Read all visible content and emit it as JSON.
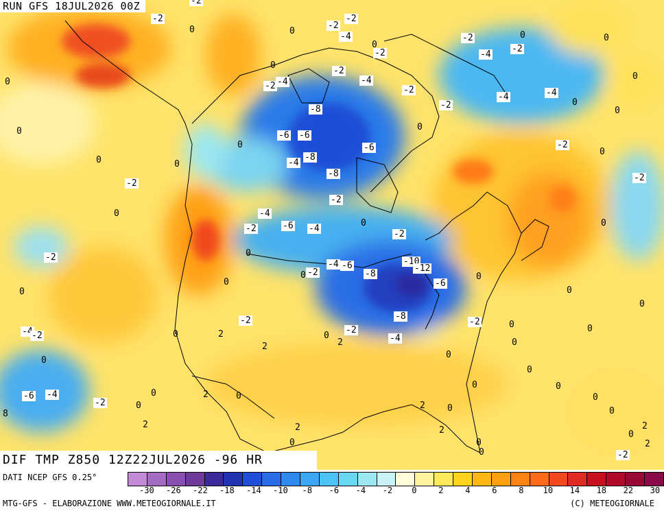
{
  "header": {
    "run_label": "RUN GFS 18JUL2026 00Z"
  },
  "map_title": "DIF TMP Z850 12Z22JUL2026 -96 HR",
  "footer": {
    "source": "DATI NCEP GFS 0.25°",
    "credit_left": "MTG-GFS - ELABORAZIONE WWW.METEOGIORNALE.IT",
    "credit_right": "(C) METEOGIORNALE"
  },
  "colorbar": {
    "colors": [
      "#c48ad6",
      "#a56ac4",
      "#8a4fb0",
      "#6f3a9b",
      "#3a2a9a",
      "#2033b0",
      "#1f4fd6",
      "#2a6be6",
      "#2f8af0",
      "#3ba6f5",
      "#4cc2f5",
      "#6ad7f2",
      "#9be7f2",
      "#c8f3f5",
      "#fffdd8",
      "#fff3a0",
      "#ffe85a",
      "#ffd21e",
      "#ffb813",
      "#ffa010",
      "#ff8312",
      "#ff6a1a",
      "#f24a1e",
      "#e02a22",
      "#c8101e",
      "#b00a2a",
      "#9a0836",
      "#8a0a4a"
    ],
    "tick_labels": [
      "-30",
      "-26",
      "-22",
      "-18",
      "-14",
      "-10",
      "-8",
      "-6",
      "-4",
      "-2",
      "0",
      "2",
      "4",
      "6",
      "8",
      "10",
      "14",
      "18",
      "22",
      "30"
    ]
  },
  "contour_labels": [
    "-2",
    "-2",
    "0",
    "-2",
    "-2",
    "-4",
    "0",
    "-2",
    "0",
    "-2",
    "0",
    "-4",
    "-2",
    "0",
    "-2",
    "-4",
    "-2",
    "-2",
    "-4",
    "-4",
    "0",
    "0",
    "-8",
    "-6",
    "-2",
    "-4",
    "0",
    "-6",
    "-2",
    "-8",
    "0",
    "-4",
    "-8",
    "0",
    "-2",
    "-2",
    "0",
    "-4",
    "-6",
    "-4",
    "-2",
    "0",
    "-2",
    "-2",
    "0",
    "-4",
    "-6",
    "-10",
    "-12",
    "-8",
    "-6",
    "0",
    "-2",
    "0",
    "-8",
    "-4",
    "-2",
    "0",
    "2",
    "2",
    "2",
    "0",
    "-4",
    "-2",
    "0",
    "0",
    "-6",
    "-4",
    "-2",
    "0",
    "2",
    "0",
    "2",
    "0",
    "2",
    "0",
    "2",
    "0",
    "0",
    "0",
    "-2",
    "0",
    "0",
    "0",
    "2",
    "0",
    "0",
    "0",
    "0",
    "2",
    "0",
    "2",
    "-2",
    "0",
    "0",
    "-2",
    "0",
    "0",
    "0",
    "0",
    "0",
    "0",
    "0",
    "0",
    "8",
    "-2",
    "-6",
    "0",
    "0"
  ]
}
